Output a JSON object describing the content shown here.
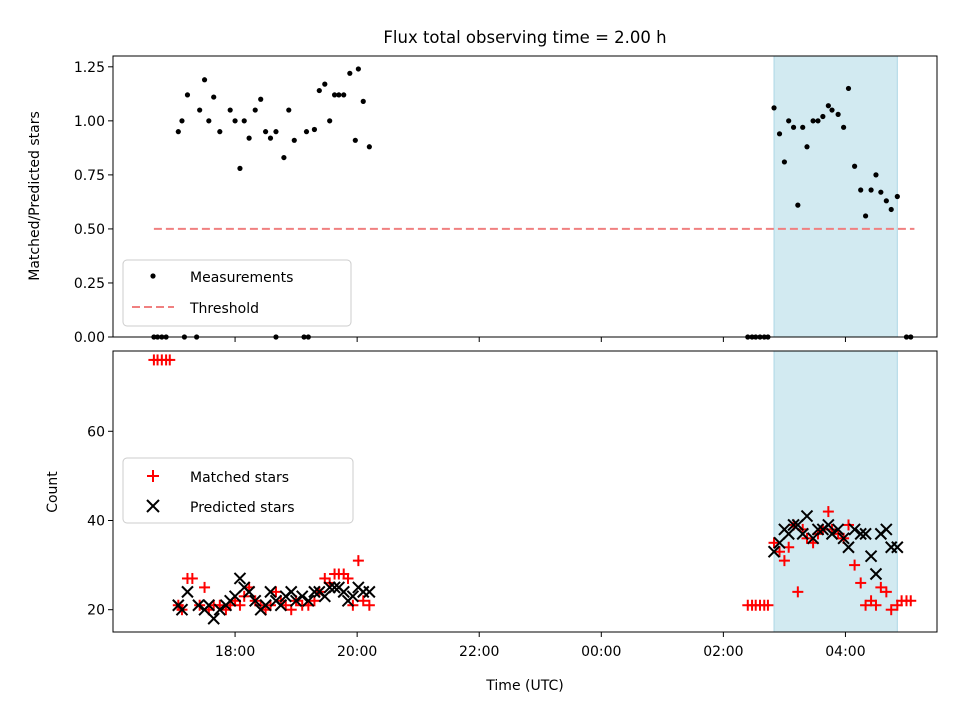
{
  "chart_data": [
    {
      "type": "scatter",
      "title": "Flux total observing time = 2.00 h",
      "xlabel": "",
      "ylabel": "Matched/Predicted stars",
      "xlim_hours": [
        16.0,
        29.5
      ],
      "ylim": [
        0.0,
        1.3
      ],
      "yticks": [
        "0.00",
        "0.25",
        "0.50",
        "0.75",
        "1.00",
        "1.25"
      ],
      "shaded_interval_hours": [
        26.83,
        28.85
      ],
      "legend": [
        "Measurements",
        "Threshold"
      ],
      "legend_position": "lower left",
      "threshold": {
        "value": 0.5,
        "x_range_hours": [
          16.67,
          29.13
        ]
      },
      "series": [
        {
          "name": "Measurements",
          "points": [
            [
              16.67,
              0.0
            ],
            [
              16.73,
              0.0
            ],
            [
              16.8,
              0.0
            ],
            [
              16.87,
              0.0
            ],
            [
              17.17,
              0.0
            ],
            [
              18.67,
              0.0
            ],
            [
              19.13,
              0.0
            ],
            [
              19.2,
              0.0
            ],
            [
              17.07,
              0.95
            ],
            [
              17.13,
              1.0
            ],
            [
              17.22,
              1.12
            ],
            [
              17.37,
              0.0
            ],
            [
              17.42,
              1.05
            ],
            [
              17.5,
              1.19
            ],
            [
              17.57,
              1.0
            ],
            [
              17.65,
              1.11
            ],
            [
              17.75,
              0.95
            ],
            [
              17.92,
              1.05
            ],
            [
              18.0,
              1.0
            ],
            [
              18.08,
              0.78
            ],
            [
              18.15,
              1.0
            ],
            [
              18.23,
              0.92
            ],
            [
              18.33,
              1.05
            ],
            [
              18.42,
              1.1
            ],
            [
              18.5,
              0.95
            ],
            [
              18.58,
              0.92
            ],
            [
              18.67,
              0.95
            ],
            [
              18.8,
              0.83
            ],
            [
              18.88,
              1.05
            ],
            [
              18.97,
              0.91
            ],
            [
              19.17,
              0.95
            ],
            [
              19.3,
              0.96
            ],
            [
              19.38,
              1.14
            ],
            [
              19.47,
              1.17
            ],
            [
              19.55,
              1.0
            ],
            [
              19.63,
              1.12
            ],
            [
              19.7,
              1.12
            ],
            [
              19.78,
              1.12
            ],
            [
              19.88,
              1.22
            ],
            [
              19.97,
              0.91
            ],
            [
              20.02,
              1.24
            ],
            [
              20.1,
              1.09
            ],
            [
              20.2,
              0.88
            ],
            [
              26.4,
              0.0
            ],
            [
              26.47,
              0.0
            ],
            [
              26.53,
              0.0
            ],
            [
              26.6,
              0.0
            ],
            [
              26.67,
              0.0
            ],
            [
              26.73,
              0.0
            ],
            [
              26.83,
              1.06
            ],
            [
              26.92,
              0.94
            ],
            [
              27.0,
              0.81
            ],
            [
              27.07,
              1.0
            ],
            [
              27.15,
              0.97
            ],
            [
              27.22,
              0.61
            ],
            [
              27.3,
              0.97
            ],
            [
              27.37,
              0.88
            ],
            [
              27.47,
              1.0
            ],
            [
              27.55,
              1.0
            ],
            [
              27.63,
              1.02
            ],
            [
              27.72,
              1.07
            ],
            [
              27.78,
              1.05
            ],
            [
              27.88,
              1.03
            ],
            [
              27.97,
              0.97
            ],
            [
              28.05,
              1.15
            ],
            [
              28.15,
              0.79
            ],
            [
              28.25,
              0.68
            ],
            [
              28.33,
              0.56
            ],
            [
              28.42,
              0.68
            ],
            [
              28.5,
              0.75
            ],
            [
              28.58,
              0.67
            ],
            [
              28.67,
              0.63
            ],
            [
              28.75,
              0.59
            ],
            [
              28.85,
              0.65
            ],
            [
              29.0,
              0.0
            ],
            [
              29.07,
              0.0
            ]
          ]
        },
        {
          "name": "Threshold",
          "y": 0.5
        }
      ]
    },
    {
      "type": "scatter",
      "title": "",
      "xlabel": "Time (UTC)",
      "ylabel": "Count",
      "xlim_hours": [
        16.0,
        29.5
      ],
      "ylim": [
        15,
        78
      ],
      "yticks": [
        "20",
        "40",
        "60"
      ],
      "xticks": [
        "18:00",
        "20:00",
        "22:00",
        "00:00",
        "02:00",
        "04:00"
      ],
      "xtick_hours": [
        18,
        20,
        22,
        24,
        26,
        28
      ],
      "shaded_interval_hours": [
        26.83,
        28.85
      ],
      "legend": [
        "Matched stars",
        "Predicted stars"
      ],
      "legend_position": "center left",
      "series": [
        {
          "name": "Matched stars",
          "marker": "plus",
          "color": "#ff0000",
          "points": [
            [
              16.67,
              76
            ],
            [
              16.73,
              76
            ],
            [
              16.8,
              76
            ],
            [
              16.87,
              76
            ],
            [
              16.93,
              76
            ],
            [
              17.07,
              21
            ],
            [
              17.13,
              20
            ],
            [
              17.22,
              27
            ],
            [
              17.3,
              27
            ],
            [
              17.42,
              21
            ],
            [
              17.5,
              25
            ],
            [
              17.57,
              20
            ],
            [
              17.65,
              21
            ],
            [
              17.75,
              21
            ],
            [
              17.85,
              20
            ],
            [
              17.92,
              21
            ],
            [
              18.0,
              22
            ],
            [
              18.08,
              21
            ],
            [
              18.15,
              23
            ],
            [
              18.23,
              25
            ],
            [
              18.33,
              22
            ],
            [
              18.42,
              21
            ],
            [
              18.5,
              20
            ],
            [
              18.58,
              21
            ],
            [
              18.67,
              24
            ],
            [
              18.75,
              22
            ],
            [
              18.83,
              21
            ],
            [
              18.92,
              20
            ],
            [
              19.0,
              22
            ],
            [
              19.1,
              21
            ],
            [
              19.2,
              21
            ],
            [
              19.3,
              22
            ],
            [
              19.38,
              24
            ],
            [
              19.47,
              27
            ],
            [
              19.55,
              26
            ],
            [
              19.63,
              28
            ],
            [
              19.7,
              28
            ],
            [
              19.78,
              28
            ],
            [
              19.85,
              27
            ],
            [
              19.93,
              21
            ],
            [
              20.02,
              31
            ],
            [
              20.1,
              22
            ],
            [
              20.2,
              21
            ],
            [
              26.4,
              21
            ],
            [
              26.47,
              21
            ],
            [
              26.53,
              21
            ],
            [
              26.6,
              21
            ],
            [
              26.67,
              21
            ],
            [
              26.73,
              21
            ],
            [
              26.83,
              35
            ],
            [
              26.92,
              33
            ],
            [
              27.0,
              31
            ],
            [
              27.07,
              34
            ],
            [
              27.15,
              39
            ],
            [
              27.22,
              24
            ],
            [
              27.3,
              38
            ],
            [
              27.37,
              36
            ],
            [
              27.47,
              35
            ],
            [
              27.55,
              37
            ],
            [
              27.63,
              38
            ],
            [
              27.72,
              42
            ],
            [
              27.78,
              38
            ],
            [
              27.88,
              37
            ],
            [
              27.97,
              36
            ],
            [
              28.05,
              39
            ],
            [
              28.15,
              30
            ],
            [
              28.25,
              26
            ],
            [
              28.33,
              21
            ],
            [
              28.42,
              22
            ],
            [
              28.5,
              21
            ],
            [
              28.58,
              25
            ],
            [
              28.67,
              24
            ],
            [
              28.75,
              20
            ],
            [
              28.85,
              21
            ],
            [
              28.92,
              22
            ],
            [
              29.0,
              22
            ],
            [
              29.07,
              22
            ]
          ]
        },
        {
          "name": "Predicted stars",
          "marker": "x",
          "color": "#000000",
          "points": [
            [
              17.07,
              21
            ],
            [
              17.13,
              20
            ],
            [
              17.22,
              24
            ],
            [
              17.4,
              21
            ],
            [
              17.5,
              20
            ],
            [
              17.57,
              21
            ],
            [
              17.65,
              18
            ],
            [
              17.75,
              20
            ],
            [
              17.85,
              21
            ],
            [
              17.92,
              22
            ],
            [
              18.0,
              23
            ],
            [
              18.08,
              27
            ],
            [
              18.15,
              25
            ],
            [
              18.23,
              24
            ],
            [
              18.33,
              22
            ],
            [
              18.42,
              20
            ],
            [
              18.5,
              21
            ],
            [
              18.58,
              24
            ],
            [
              18.67,
              22
            ],
            [
              18.75,
              21
            ],
            [
              18.83,
              23
            ],
            [
              18.92,
              24
            ],
            [
              19.0,
              22
            ],
            [
              19.1,
              23
            ],
            [
              19.2,
              22
            ],
            [
              19.3,
              24
            ],
            [
              19.38,
              24
            ],
            [
              19.47,
              23
            ],
            [
              19.55,
              25
            ],
            [
              19.63,
              25
            ],
            [
              19.7,
              25
            ],
            [
              19.78,
              24
            ],
            [
              19.85,
              22
            ],
            [
              19.93,
              23
            ],
            [
              20.02,
              25
            ],
            [
              20.1,
              24
            ],
            [
              20.2,
              24
            ],
            [
              26.83,
              33
            ],
            [
              26.92,
              35
            ],
            [
              27.0,
              38
            ],
            [
              27.07,
              37
            ],
            [
              27.15,
              39
            ],
            [
              27.22,
              39
            ],
            [
              27.3,
              37
            ],
            [
              27.37,
              41
            ],
            [
              27.47,
              36
            ],
            [
              27.55,
              38
            ],
            [
              27.63,
              38
            ],
            [
              27.72,
              39
            ],
            [
              27.78,
              37
            ],
            [
              27.88,
              38
            ],
            [
              27.97,
              36
            ],
            [
              28.05,
              34
            ],
            [
              28.15,
              38
            ],
            [
              28.25,
              37
            ],
            [
              28.33,
              37
            ],
            [
              28.42,
              32
            ],
            [
              28.5,
              28
            ],
            [
              28.58,
              37
            ],
            [
              28.67,
              38
            ],
            [
              28.75,
              34
            ],
            [
              28.85,
              34
            ]
          ]
        }
      ]
    }
  ],
  "colors": {
    "measurement": "#000000",
    "threshold": "#f08080",
    "matched": "#ff0000",
    "predicted": "#000000",
    "shade": "#add8e6"
  }
}
